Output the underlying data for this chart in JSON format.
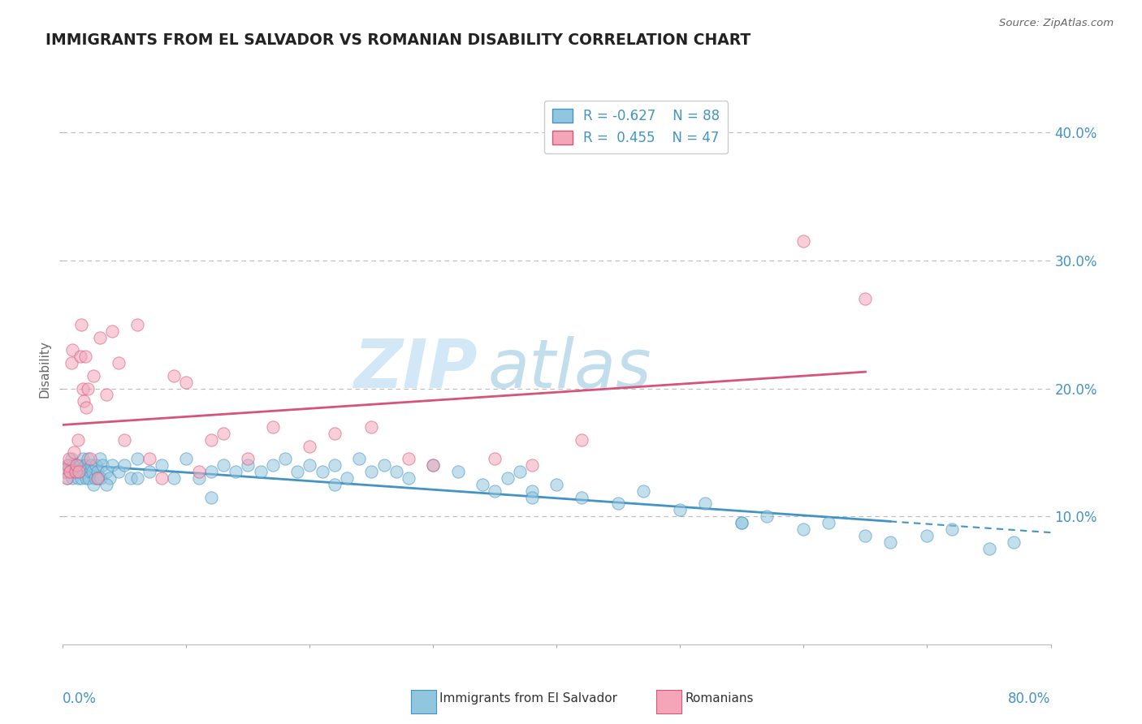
{
  "title": "IMMIGRANTS FROM EL SALVADOR VS ROMANIAN DISABILITY CORRELATION CHART",
  "source": "Source: ZipAtlas.com",
  "xmin": 0.0,
  "xmax": 80.0,
  "ymin": 0.0,
  "ymax": 43.0,
  "yticks": [
    10.0,
    20.0,
    30.0,
    40.0
  ],
  "blue_color": "#92c5de",
  "blue_edge": "#4393c3",
  "pink_color": "#f4a6b8",
  "pink_edge": "#d6537a",
  "blue_line_color": "#4393c3",
  "pink_line_color": "#d6537a",
  "R_blue": -0.627,
  "N_blue": 88,
  "R_pink": 0.455,
  "N_pink": 47,
  "watermark_zip": "ZIP",
  "watermark_atlas": "atlas",
  "blue_x": [
    0.3,
    0.4,
    0.5,
    0.6,
    0.7,
    0.8,
    0.9,
    1.0,
    1.1,
    1.2,
    1.3,
    1.4,
    1.5,
    1.6,
    1.7,
    1.8,
    1.9,
    2.0,
    2.1,
    2.2,
    2.3,
    2.4,
    2.5,
    2.6,
    2.7,
    2.8,
    2.9,
    3.0,
    3.1,
    3.2,
    3.5,
    3.8,
    4.0,
    4.5,
    5.0,
    5.5,
    6.0,
    7.0,
    8.0,
    9.0,
    10.0,
    11.0,
    12.0,
    13.0,
    14.0,
    15.0,
    16.0,
    17.0,
    18.0,
    19.0,
    20.0,
    21.0,
    22.0,
    23.0,
    24.0,
    25.0,
    26.0,
    27.0,
    28.0,
    30.0,
    32.0,
    34.0,
    35.0,
    36.0,
    37.0,
    38.0,
    40.0,
    42.0,
    45.0,
    47.0,
    50.0,
    52.0,
    55.0,
    57.0,
    60.0,
    62.0,
    65.0,
    67.0,
    70.0,
    72.0,
    75.0,
    77.0,
    55.0,
    38.0,
    22.0,
    12.0,
    6.0,
    3.5
  ],
  "blue_y": [
    13.5,
    13.0,
    14.0,
    13.5,
    14.5,
    13.0,
    14.0,
    13.5,
    14.0,
    13.0,
    13.5,
    14.0,
    13.0,
    14.5,
    13.5,
    14.0,
    13.0,
    14.5,
    13.0,
    13.5,
    14.0,
    13.5,
    12.5,
    13.0,
    14.0,
    13.5,
    13.0,
    14.5,
    13.0,
    14.0,
    13.5,
    13.0,
    14.0,
    13.5,
    14.0,
    13.0,
    14.5,
    13.5,
    14.0,
    13.0,
    14.5,
    13.0,
    13.5,
    14.0,
    13.5,
    14.0,
    13.5,
    14.0,
    14.5,
    13.5,
    14.0,
    13.5,
    14.0,
    13.0,
    14.5,
    13.5,
    14.0,
    13.5,
    13.0,
    14.0,
    13.5,
    12.5,
    12.0,
    13.0,
    13.5,
    12.0,
    12.5,
    11.5,
    11.0,
    12.0,
    10.5,
    11.0,
    9.5,
    10.0,
    9.0,
    9.5,
    8.5,
    8.0,
    8.5,
    9.0,
    7.5,
    8.0,
    9.5,
    11.5,
    12.5,
    11.5,
    13.0,
    12.5
  ],
  "pink_x": [
    0.2,
    0.3,
    0.4,
    0.5,
    0.6,
    0.7,
    0.8,
    0.9,
    1.0,
    1.1,
    1.2,
    1.3,
    1.4,
    1.5,
    1.6,
    1.7,
    1.8,
    1.9,
    2.0,
    2.2,
    2.5,
    2.8,
    3.0,
    3.5,
    4.0,
    4.5,
    5.0,
    6.0,
    7.0,
    8.0,
    9.0,
    10.0,
    11.0,
    12.0,
    13.0,
    15.0,
    17.0,
    20.0,
    22.0,
    25.0,
    28.0,
    30.0,
    35.0,
    38.0,
    42.0,
    60.0,
    65.0
  ],
  "pink_y": [
    13.5,
    13.0,
    14.0,
    14.5,
    13.5,
    22.0,
    23.0,
    15.0,
    13.5,
    14.0,
    16.0,
    13.5,
    22.5,
    25.0,
    20.0,
    19.0,
    22.5,
    18.5,
    20.0,
    14.5,
    21.0,
    13.0,
    24.0,
    19.5,
    24.5,
    22.0,
    16.0,
    25.0,
    14.5,
    13.0,
    21.0,
    20.5,
    13.5,
    16.0,
    16.5,
    14.5,
    17.0,
    15.5,
    16.5,
    17.0,
    14.5,
    14.0,
    14.5,
    14.0,
    16.0,
    31.5,
    27.0
  ]
}
